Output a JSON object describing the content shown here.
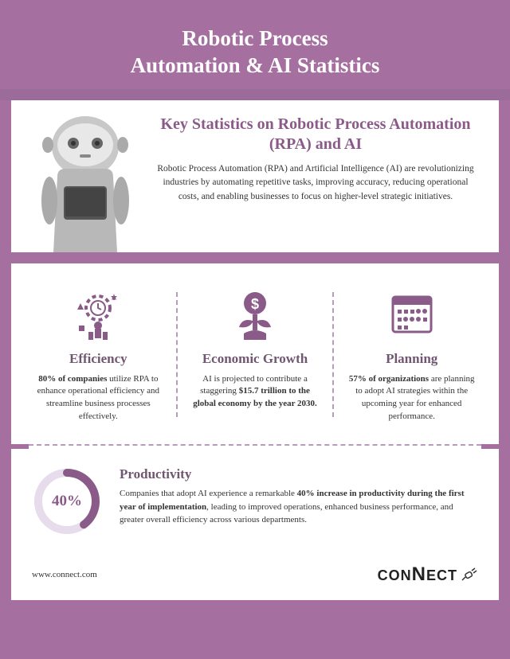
{
  "colors": {
    "bg": "#a56fa0",
    "accent": "#8a5a88",
    "text": "#333",
    "heading": "#705670",
    "dash": "#b89abb",
    "ring_track": "#e7dceb",
    "ring_fill": "#8a5a88",
    "robot_light": "#c8c8c8",
    "robot_dark": "#8a8a8a",
    "robot_tablet": "#555"
  },
  "title": "Robotic Process\nAutomation & AI Statistics",
  "hero": {
    "heading": "Key Statistics on Robotic Process Automation (RPA) and AI",
    "body": "Robotic Process Automation (RPA) and Artificial Intelligence (AI) are revolutionizing industries by automating repetitive tasks, improving accuracy, reducing operational costs, and enabling businesses to focus on higher-level strategic initiatives."
  },
  "stats": [
    {
      "icon": "gear-clock",
      "title": "Efficiency",
      "body_html": "<b>80% of companies</b> utilize RPA to enhance operational efficiency and streamline business processes effectively."
    },
    {
      "icon": "dollar-plant",
      "title": "Economic Growth",
      "body_html": "AI is projected to contribute a staggering <b>$15.7 trillion to the global economy by the year 2030.</b>"
    },
    {
      "icon": "calendar",
      "title": "Planning",
      "body_html": "<b>57% of organizations</b> are planning to adopt AI strategies within the upcoming year for enhanced performance."
    }
  ],
  "productivity": {
    "percent": 40,
    "label": "40%",
    "title": "Productivity",
    "body_html": "Companies that adopt AI experience a remarkable <b>40% increase in productivity during the first year of implementation</b>, leading to improved operations, enhanced business performance, and greater overall efficiency across various departments."
  },
  "footer": {
    "url": "www.connect.com",
    "brand": "CONNECT"
  }
}
